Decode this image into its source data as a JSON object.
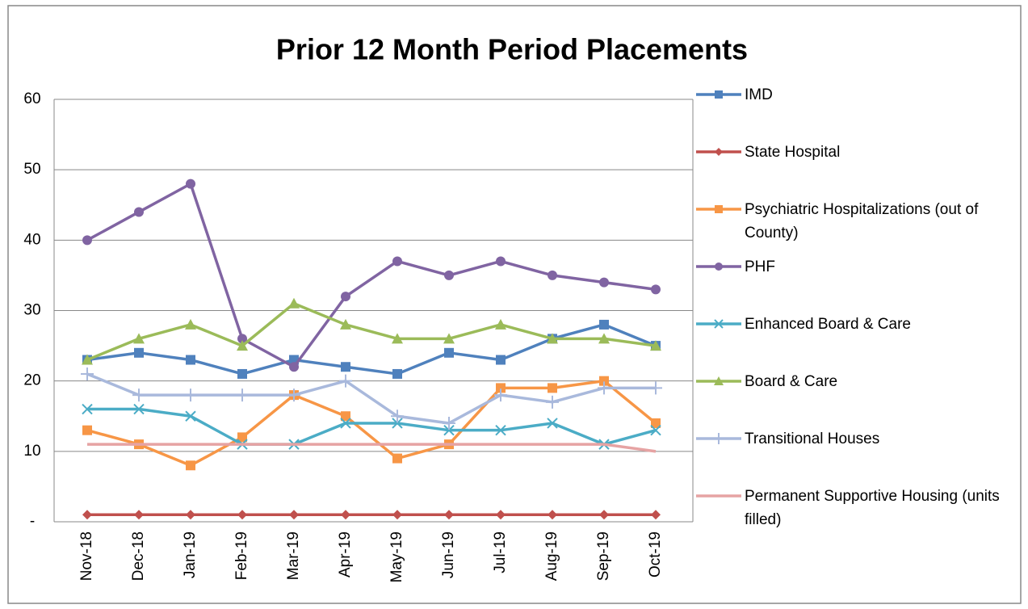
{
  "chart_data": {
    "type": "line",
    "title": "Prior 12 Month Period Placements",
    "categories": [
      "Nov-18",
      "Dec-18",
      "Jan-19",
      "Feb-19",
      "Mar-19",
      "Apr-19",
      "May-19",
      "Jun-19",
      "Jul-19",
      "Aug-19",
      "Sep-19",
      "Oct-19"
    ],
    "ylim": [
      0,
      60
    ],
    "yticks": [
      {
        "value": 0,
        "label": "-"
      },
      10,
      20,
      30,
      40,
      50,
      60
    ],
    "grid": true,
    "legend": "right",
    "series": [
      {
        "name": "IMD",
        "color": "#4f81bd",
        "marker": "square",
        "values": [
          23,
          24,
          23,
          21,
          23,
          22,
          21,
          24,
          23,
          26,
          28,
          25
        ]
      },
      {
        "name": "State Hospital",
        "color": "#c0504d",
        "marker": "diamond",
        "values": [
          1,
          1,
          1,
          1,
          1,
          1,
          1,
          1,
          1,
          1,
          1,
          1
        ]
      },
      {
        "name": "Psychiatric Hospitalizations (out of County)",
        "color": "#f79646",
        "marker": "square",
        "values": [
          13,
          11,
          8,
          12,
          18,
          15,
          9,
          11,
          19,
          19,
          20,
          14
        ]
      },
      {
        "name": "PHF",
        "color": "#8064a2",
        "marker": "circle",
        "values": [
          40,
          44,
          48,
          26,
          22,
          32,
          37,
          35,
          37,
          35,
          34,
          33
        ]
      },
      {
        "name": "Enhanced Board & Care",
        "color": "#4bacc6",
        "marker": "x",
        "values": [
          16,
          16,
          15,
          11,
          11,
          14,
          14,
          13,
          13,
          14,
          11,
          13
        ]
      },
      {
        "name": "Board & Care",
        "color": "#9bbb59",
        "marker": "triangle",
        "values": [
          23,
          26,
          28,
          25,
          31,
          28,
          26,
          26,
          28,
          26,
          26,
          25
        ]
      },
      {
        "name": "Transitional Houses",
        "color": "#a9b9dc",
        "marker": "plus",
        "values": [
          21,
          18,
          18,
          18,
          18,
          20,
          15,
          14,
          18,
          17,
          19,
          19
        ]
      },
      {
        "name": "Permanent Supportive Housing (units filled)",
        "color": "#e6a3a3",
        "marker": "none",
        "values": [
          11,
          11,
          11,
          11,
          11,
          11,
          11,
          11,
          11,
          11,
          11,
          10
        ]
      }
    ]
  }
}
